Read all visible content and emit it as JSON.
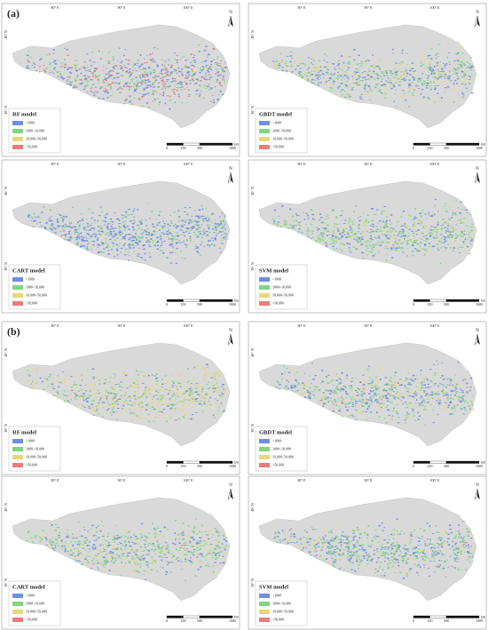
{
  "figure": {
    "groups": [
      {
        "label": "(a)",
        "panels": [
          {
            "model": "RF model"
          },
          {
            "model": "GBDT model"
          },
          {
            "model": "CART model"
          },
          {
            "model": "SVM model"
          }
        ]
      },
      {
        "label": "(b)",
        "panels": [
          {
            "model": "RF model"
          },
          {
            "model": "GBDT model"
          },
          {
            "model": "CART model"
          },
          {
            "model": "SVM model"
          }
        ]
      }
    ],
    "legend": {
      "items": [
        {
          "label": "<1000",
          "color": "#6f8fe0"
        },
        {
          "label": "1000–10,000",
          "color": "#7fd67f"
        },
        {
          "label": "10,000–50,000",
          "color": "#e8d67a"
        },
        {
          "label": ">50,000",
          "color": "#ec7b7b"
        }
      ]
    },
    "scale_bar": {
      "labels": [
        "0",
        "250",
        "500",
        "1000"
      ],
      "unit": "km"
    },
    "north": "N",
    "graticule": {
      "lon": [
        "80° E",
        "90° E",
        "100° E"
      ],
      "lat": [
        "30° N",
        "40° N"
      ]
    }
  }
}
